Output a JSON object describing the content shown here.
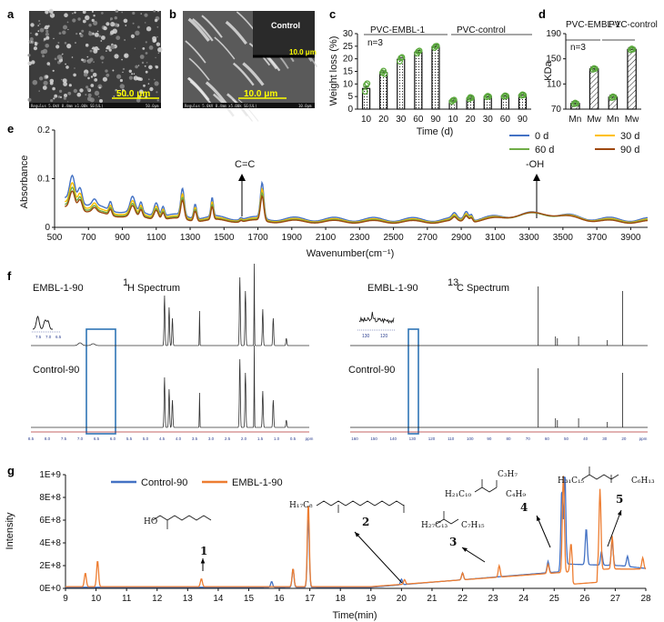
{
  "panel_labels": {
    "a": "a",
    "b": "b",
    "c": "c",
    "d": "d",
    "e": "e",
    "f": "f",
    "g": "g"
  },
  "sem": {
    "a_scale": "50.0 μm",
    "a_footer": "Regulus 5.0kV 8.4mm x1.00k SE(UL)",
    "a_footer_right": "50.0μm",
    "b_scale": "10.0 μm",
    "b_footer": "Regulus 5.0kV 8.4mm x5.00k SE(UL)",
    "b_footer_right": "10.0μm",
    "inset_label": "Control",
    "inset_scale": "10.0 μm"
  },
  "chart_data": [
    {
      "id": "c",
      "type": "bar",
      "ylabel": "Weight loss (%)",
      "xlabel": "Time  (d)",
      "ylim": [
        0,
        30
      ],
      "yticks": [
        0,
        5,
        10,
        15,
        20,
        25,
        30
      ],
      "categories": [
        "10",
        "20",
        "30",
        "60",
        "90",
        "10",
        "20",
        "30",
        "60",
        "90"
      ],
      "groups": [
        "PVC-EMBL-1",
        "PVC-control"
      ],
      "annotation": "n=3",
      "values": [
        8.2,
        14.5,
        19.8,
        22.6,
        24.8,
        3.3,
        4.3,
        4.9,
        5.2,
        5.6
      ],
      "replicates": [
        [
          7,
          9.6,
          10.2
        ],
        [
          14.5,
          15.2,
          14.0
        ],
        [
          19.0,
          20.3,
          20.6
        ],
        [
          22.2,
          22.9,
          23.2
        ],
        [
          24.4,
          25.0,
          25.1
        ],
        [
          3.0,
          3.5,
          3.7
        ],
        [
          4.1,
          4.7,
          4.5
        ],
        [
          4.8,
          5.2,
          5.0
        ],
        [
          5.0,
          5.4,
          5.2
        ],
        [
          5.4,
          5.8,
          5.6
        ]
      ]
    },
    {
      "id": "d",
      "type": "bar",
      "ylabel": "KDa",
      "ylim": [
        70,
        190
      ],
      "yticks": [
        70,
        110,
        150,
        190
      ],
      "categories": [
        "Mn",
        "Mw",
        "Mn",
        "Mw"
      ],
      "groups": [
        "PVC-EMBL-1",
        "PVC-control"
      ],
      "annotation": "n=3",
      "values": [
        79,
        134,
        89,
        165
      ],
      "replicates": [
        [
          78,
          80,
          79
        ],
        [
          133,
          135,
          134
        ],
        [
          88,
          90,
          89
        ],
        [
          164,
          166,
          165
        ]
      ]
    },
    {
      "id": "e",
      "type": "line",
      "xlabel": "Wavenumber(cm⁻¹)",
      "ylabel": "Absorbance",
      "xlim": [
        500,
        4000
      ],
      "ylim": [
        0,
        0.2
      ],
      "xticks": [
        500,
        700,
        900,
        1100,
        1300,
        1500,
        1700,
        1900,
        2100,
        2300,
        2500,
        2700,
        2900,
        3100,
        3300,
        3500,
        3700,
        3900
      ],
      "yticks": [
        0,
        0.1,
        0.2
      ],
      "annotations": [
        "C=C",
        "-OH"
      ],
      "series": [
        {
          "name": "0 d",
          "color": "#4472c4",
          "scale": 1.0,
          "oh": 0.012
        },
        {
          "name": "30 d",
          "color": "#ffc000",
          "scale": 0.86,
          "oh": 0.014
        },
        {
          "name": "60 d",
          "color": "#70ad47",
          "scale": 0.77,
          "oh": 0.015
        },
        {
          "name": "90 d",
          "color": "#9e480e",
          "scale": 0.7,
          "oh": 0.017
        }
      ]
    },
    {
      "id": "g",
      "type": "line",
      "xlabel": "Time(min)",
      "ylabel": "Intensity",
      "xlim": [
        9,
        28
      ],
      "ylim": [
        0,
        1000000000
      ],
      "xticks": [
        9,
        10,
        11,
        12,
        13,
        14,
        15,
        16,
        17,
        18,
        19,
        20,
        21,
        22,
        23,
        24,
        25,
        26,
        27,
        28
      ],
      "ytick_labels": [
        "0E+0",
        "2E+8",
        "4E+8",
        "6E+8",
        "8E+8",
        "1E+9"
      ],
      "series": [
        {
          "name": "Control-90",
          "color": "#4472c4"
        },
        {
          "name": "EMBL-1-90",
          "color": "#ed7d31"
        }
      ],
      "peak_numbers": [
        "1",
        "2",
        "3",
        "4",
        "5"
      ]
    }
  ],
  "nmr": {
    "h_title_pre": "1",
    "h_title": "H Spectrum",
    "c_title_pre": "13",
    "c_title": "C Spectrum",
    "emb_label_h": "EMBL-1-90",
    "ctl_label_h": "Control-90",
    "emb_label_c": "EMBL-1-90",
    "ctl_label_c": "Control-90",
    "h_inset_ticks": [
      "7.5",
      "7.0",
      "6.5"
    ],
    "c_inset_ticks": [
      "130",
      "120"
    ],
    "h_axis": [
      "8.5",
      "8.0",
      "7.5",
      "7.0",
      "6.5",
      "6.0",
      "5.5",
      "5.0",
      "4.5",
      "4.0",
      "3.5",
      "3.0",
      "2.5",
      "2.0",
      "1.5",
      "1.0",
      "0.5",
      "ppm"
    ],
    "c_axis": [
      "160",
      "150",
      "140",
      "130",
      "120",
      "110",
      "100",
      "90",
      "80",
      "70",
      "60",
      "50",
      "40",
      "30",
      "20",
      "ppm"
    ]
  },
  "chem_labels": {
    "s2": "H₁₇C₈",
    "s3a": "H₂₇C₁₃",
    "s3b": "C₇H₁₅",
    "s4a": "C₃H₇",
    "s4b": "H₂₁C₁₀",
    "s4c": "C₄H₉",
    "s5a": "H₃₁C₁₅",
    "s5b": "C₆H₁₃"
  }
}
